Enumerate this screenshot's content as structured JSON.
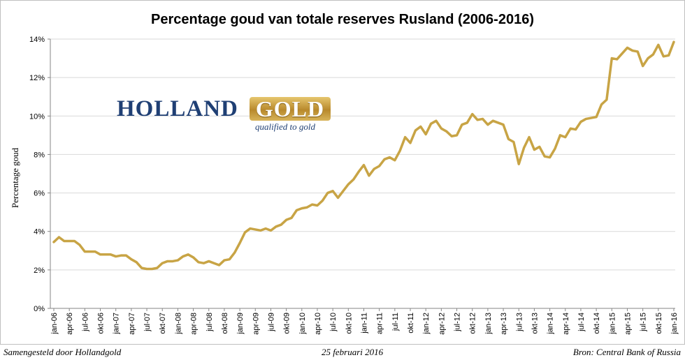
{
  "footer": {
    "left": "Samengesteld door Hollandgold",
    "middle": "25 februari 2016",
    "right": "Bron: Central Bank of Russia"
  },
  "logo": {
    "holland": "HOLLAND",
    "gold": "GOLD",
    "tagline": "qualified to gold"
  },
  "colors": {
    "line": "#c8a445",
    "grid": "#d9d9d9",
    "axis": "#868686"
  },
  "chart_data": {
    "type": "line",
    "title": "Percentage goud van totale reserves Rusland (2006-2016)",
    "ylabel": "Percentage goud",
    "xlabel": "",
    "ylim": [
      0,
      14
    ],
    "yticks": [
      0,
      2,
      4,
      6,
      8,
      10,
      12,
      14
    ],
    "ytick_labels": [
      "0%",
      "2%",
      "4%",
      "6%",
      "8%",
      "10%",
      "12%",
      "14%"
    ],
    "grid": true,
    "legend": "none",
    "x_tick_labels": [
      "jan-06",
      "apr-06",
      "jul-06",
      "okt-06",
      "jan-07",
      "apr-07",
      "jul-07",
      "okt-07",
      "jan-08",
      "apr-08",
      "jul-08",
      "okt-08",
      "jan-09",
      "apr-09",
      "jul-09",
      "okt-09",
      "jan-10",
      "apr-10",
      "jul-10",
      "okt-10",
      "jan-11",
      "apr-11",
      "jul-11",
      "okt-11",
      "jan-12",
      "apr-12",
      "jul-12",
      "okt-12",
      "jan-13",
      "apr-13",
      "jul-13",
      "okt-13",
      "jan-14",
      "apr-14",
      "jul-14",
      "okt-14",
      "jan-15",
      "apr-15",
      "jul-15",
      "okt-15",
      "jan-16"
    ],
    "series": [
      {
        "values": [
          3.45,
          3.7,
          3.5,
          3.5,
          3.5,
          3.3,
          2.95,
          2.95,
          2.95,
          2.8,
          2.8,
          2.8,
          2.7,
          2.75,
          2.75,
          2.55,
          2.4,
          2.1,
          2.05,
          2.05,
          2.1,
          2.35,
          2.45,
          2.45,
          2.5,
          2.7,
          2.8,
          2.65,
          2.4,
          2.35,
          2.45,
          2.35,
          2.25,
          2.5,
          2.55,
          2.9,
          3.4,
          3.95,
          4.15,
          4.1,
          4.05,
          4.15,
          4.05,
          4.25,
          4.35,
          4.6,
          4.7,
          5.1,
          5.2,
          5.25,
          5.4,
          5.35,
          5.6,
          6.0,
          6.1,
          5.75,
          6.1,
          6.45,
          6.7,
          7.1,
          7.45,
          6.9,
          7.25,
          7.4,
          7.75,
          7.85,
          7.7,
          8.2,
          8.9,
          8.6,
          9.25,
          9.45,
          9.05,
          9.6,
          9.75,
          9.35,
          9.2,
          8.95,
          9.0,
          9.55,
          9.65,
          10.1,
          9.8,
          9.85,
          9.55,
          9.75,
          9.65,
          9.55,
          8.8,
          8.65,
          7.5,
          8.35,
          8.9,
          8.25,
          8.4,
          7.9,
          7.85,
          8.3,
          9.0,
          8.9,
          9.35,
          9.3,
          9.7,
          9.85,
          9.9,
          9.95,
          10.6,
          10.85,
          13.0,
          12.95,
          13.25,
          13.55,
          13.4,
          13.35,
          12.6,
          13.0,
          13.2,
          13.7,
          13.1,
          13.15,
          13.85
        ]
      }
    ]
  }
}
